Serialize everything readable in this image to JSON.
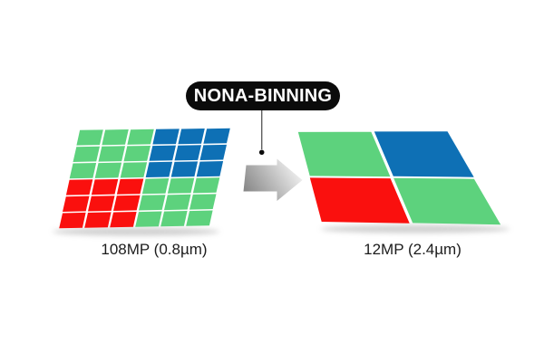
{
  "badge": {
    "label": "NONA-BINNING"
  },
  "left_sensor": {
    "label": "108MP (0.8µm)",
    "grid_size": 6,
    "pattern": [
      "GGGBBB",
      "GGGBBB",
      "GGGBBB",
      "RRRGGG",
      "RRRGGG",
      "RRRGGG"
    ]
  },
  "right_sensor": {
    "label": "12MP (2.4µm)",
    "grid_size": 2,
    "pattern": [
      "GB",
      "RG"
    ]
  },
  "icons": {
    "arrow": "right-arrow-icon",
    "connector": "line-with-dot"
  },
  "colors": {
    "pixel_green": "#5DD27D",
    "pixel_blue": "#0E70B5",
    "pixel_red": "#FA100E",
    "badge_bg": "#0B0B0B",
    "badge_text": "#FFFFFF",
    "caption_text": "#1C1C1C",
    "connector_line": "#5F5F5F",
    "connector_dot": "#0C0C0C",
    "arrow_dark": "#7E7E7E",
    "arrow_mid": "#BDBDBD",
    "arrow_light": "#F2F2F2",
    "shadow": "#AAAAAA",
    "background": "#FFFFFF"
  }
}
